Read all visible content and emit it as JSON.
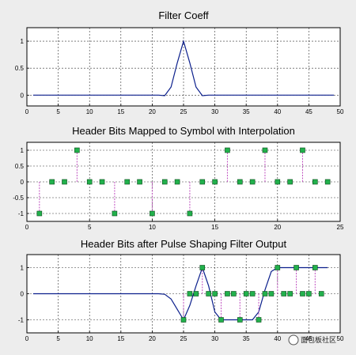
{
  "watermark": {
    "text": "面包板社区"
  },
  "colors": {
    "line": "#0b1f8c",
    "marker": "#22b14c",
    "stem": "#c050c0",
    "grid": "#000000",
    "axes_bg": "#ffffff",
    "figure_bg": "#ededed"
  },
  "chart_data": [
    {
      "type": "line",
      "title": "Filter Coeff",
      "xlim": [
        0,
        50
      ],
      "ylim": [
        -0.2,
        1.25
      ],
      "xticks": [
        0,
        5,
        10,
        15,
        20,
        25,
        30,
        35,
        40,
        45,
        50
      ],
      "yticks": [
        0,
        0.5,
        1
      ],
      "ytick_labels": [
        "0",
        "0.5",
        "1"
      ],
      "grid": true,
      "series": [
        {
          "x": [
            1,
            2,
            3,
            4,
            5,
            6,
            7,
            8,
            9,
            10,
            11,
            12,
            13,
            14,
            15,
            16,
            17,
            18,
            19,
            20,
            21,
            22,
            23,
            24,
            25,
            26,
            27,
            28,
            29,
            30,
            31,
            32,
            33,
            34,
            35,
            36,
            37,
            38,
            39,
            40,
            41,
            42,
            43,
            44,
            45,
            46,
            47,
            48,
            49
          ],
          "y": [
            0,
            0,
            0,
            0,
            0,
            0,
            0,
            0,
            0,
            0,
            0,
            0,
            0,
            0,
            0,
            0,
            0,
            0,
            0,
            0,
            0,
            -0.01,
            0.15,
            0.6,
            1,
            0.6,
            0.15,
            -0.01,
            0,
            0,
            0,
            0,
            0,
            0,
            0,
            0,
            0,
            0,
            0,
            0,
            0,
            0,
            0,
            0,
            0,
            0,
            0,
            0,
            0
          ]
        }
      ]
    },
    {
      "type": "stem",
      "title": "Header Bits Mapped to Symbol with Interpolation",
      "xlim": [
        0,
        25
      ],
      "ylim": [
        -1.25,
        1.25
      ],
      "xticks": [
        0,
        5,
        10,
        15,
        20,
        25
      ],
      "yticks": [
        -1,
        -0.5,
        0,
        0.5,
        1
      ],
      "ytick_labels": [
        "-1",
        "-0.5",
        "0",
        "0.5",
        "1"
      ],
      "grid": true,
      "series": [
        {
          "x": [
            1,
            2,
            3,
            4,
            5,
            6,
            7,
            8,
            9,
            10,
            11,
            12,
            13,
            14,
            15,
            16,
            17,
            18,
            19,
            20,
            21,
            22,
            23,
            24
          ],
          "y": [
            -1,
            0,
            0,
            1,
            0,
            0,
            -1,
            0,
            0,
            -1,
            0,
            0,
            -1,
            0,
            0,
            1,
            0,
            0,
            1,
            0,
            0,
            1,
            0,
            0
          ]
        }
      ]
    },
    {
      "type": "line+stem",
      "title": "Header Bits after Pulse Shaping Filter Output",
      "xlim": [
        0,
        50
      ],
      "ylim": [
        -1.5,
        1.5
      ],
      "xticks": [
        0,
        5,
        10,
        15,
        20,
        25,
        30,
        35,
        40,
        45,
        50
      ],
      "yticks": [
        -1,
        0,
        1
      ],
      "ytick_labels": [
        "-1",
        "0",
        "1"
      ],
      "grid": true,
      "series": [
        {
          "x": [
            1,
            2,
            3,
            4,
            5,
            6,
            7,
            8,
            9,
            10,
            11,
            12,
            13,
            14,
            15,
            16,
            17,
            18,
            19,
            20,
            21,
            22,
            23,
            24,
            25,
            26,
            27,
            28,
            29,
            30,
            31,
            32,
            33,
            34,
            35,
            36,
            37,
            38,
            39,
            40,
            41,
            42,
            43,
            44,
            45,
            46,
            47,
            48
          ],
          "y": [
            0,
            0,
            0,
            0,
            0,
            0,
            0,
            0,
            0,
            0,
            0,
            0,
            0,
            0,
            0,
            0,
            0,
            0,
            0,
            0,
            0,
            -0.02,
            -0.2,
            -0.6,
            -1,
            -0.45,
            0.3,
            1,
            0.3,
            -0.7,
            -1,
            -1,
            -1,
            -1,
            -1,
            -1,
            -0.7,
            0.15,
            0.85,
            1,
            1,
            1,
            1,
            1,
            1,
            1,
            1,
            1
          ]
        },
        {
          "x": [
            25,
            26,
            27,
            28,
            29,
            30,
            31,
            32,
            33,
            34,
            35,
            36,
            37,
            38,
            39,
            40,
            41,
            42,
            43,
            44,
            45,
            46,
            47
          ],
          "y": [
            -1,
            0,
            0,
            1,
            0,
            0,
            -1,
            0,
            0,
            -1,
            0,
            0,
            -1,
            0,
            0,
            1,
            0,
            0,
            1,
            0,
            0,
            1,
            0
          ]
        }
      ]
    }
  ]
}
